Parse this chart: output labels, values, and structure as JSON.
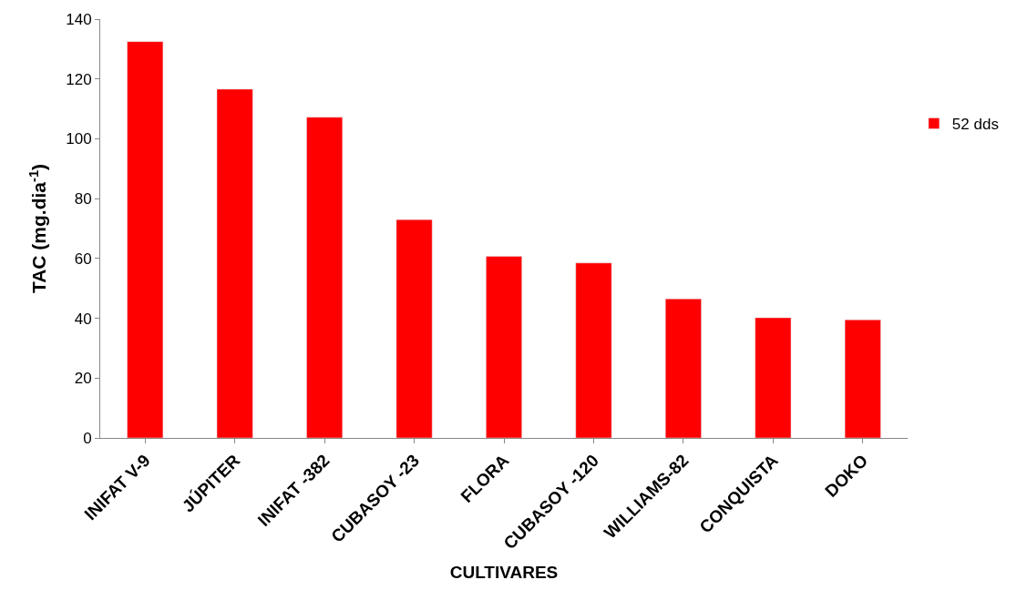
{
  "chart_data": {
    "type": "bar",
    "xlabel": "CULTIVARES",
    "ylabel": "TAC (mg.dia$^{-1}$)",
    "categories": [
      "INIFAT V-9",
      "JÚPITER",
      "INIFAT -382",
      "CUBASOY -23",
      "FLORA",
      "CUBASOY -120",
      "WILLIAMS-82",
      "CONQUISTA",
      "DOKO"
    ],
    "series": [
      {
        "name": "52 dds",
        "color": "#ff0000",
        "values": [
          132.5,
          116.6,
          107.2,
          73.0,
          60.7,
          58.5,
          46.5,
          40.2,
          39.5
        ]
      }
    ],
    "ylim": [
      0,
      140
    ],
    "yticks": [
      0,
      20,
      40,
      60,
      80,
      100,
      120,
      140
    ],
    "legend": "right"
  }
}
